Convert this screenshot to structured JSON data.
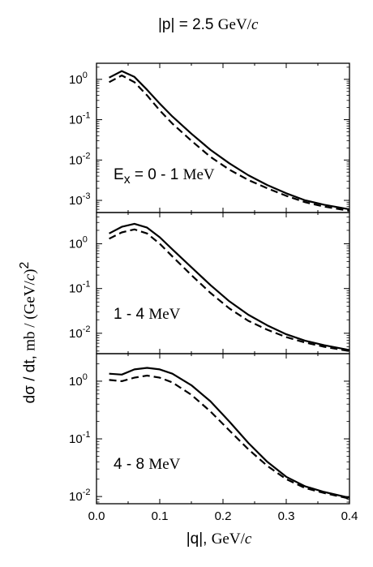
{
  "figure": {
    "title_prefix": "|p| = 2.5",
    "title_unit": "GeV/",
    "title_c": "c",
    "xlabel_q": "|q|,",
    "xlabel_unit": "GeV/",
    "xlabel_c": "c",
    "ylabel_main": "dσ / dt,",
    "ylabel_unit": "mb / (GeV/",
    "ylabel_c": "c",
    "ylabel_close": ")",
    "ylabel_exp": "2"
  },
  "panels": [
    {
      "label_main": "E",
      "label_sub": "x",
      "label_rest": " = 0 - 1",
      "label_unit": "MeV"
    },
    {
      "label_main": "1 - 4",
      "label_unit": "MeV"
    },
    {
      "label_main": "4 - 8",
      "label_unit": "MeV"
    }
  ],
  "chart_data": [
    {
      "type": "line",
      "panel": "E_x = 0 - 1 MeV",
      "xlim": [
        0.0,
        0.4
      ],
      "ylim": [
        0.0005,
        2.5
      ],
      "yscale": "log",
      "x_ticks": [
        0.0,
        0.1,
        0.2,
        0.3,
        0.4
      ],
      "y_ticks": [
        1,
        0.1,
        0.01,
        0.001
      ],
      "y_tick_labels": [
        "10^0",
        "10^-1",
        "10^-2",
        "10^-3"
      ],
      "series": [
        {
          "style": "solid",
          "x": [
            0.02,
            0.04,
            0.06,
            0.08,
            0.1,
            0.12,
            0.15,
            0.18,
            0.21,
            0.24,
            0.27,
            0.3,
            0.33,
            0.36,
            0.4
          ],
          "y": [
            1.1,
            1.6,
            1.15,
            0.55,
            0.25,
            0.12,
            0.045,
            0.018,
            0.0083,
            0.0042,
            0.0024,
            0.0015,
            0.001,
            0.00078,
            0.0006
          ]
        },
        {
          "style": "dashed",
          "x": [
            0.02,
            0.04,
            0.06,
            0.08,
            0.1,
            0.12,
            0.15,
            0.18,
            0.21,
            0.24,
            0.27,
            0.3,
            0.33,
            0.36,
            0.4
          ],
          "y": [
            0.85,
            1.25,
            0.85,
            0.4,
            0.17,
            0.08,
            0.03,
            0.012,
            0.0058,
            0.0032,
            0.002,
            0.0013,
            0.0009,
            0.0007,
            0.00055
          ]
        }
      ]
    },
    {
      "type": "line",
      "panel": "1 - 4 MeV",
      "xlim": [
        0.0,
        0.4
      ],
      "ylim": [
        0.0035,
        5.0
      ],
      "yscale": "log",
      "x_ticks": [
        0.0,
        0.1,
        0.2,
        0.3,
        0.4
      ],
      "y_ticks": [
        1,
        0.1,
        0.01
      ],
      "y_tick_labels": [
        "10^0",
        "10^-1",
        "10^-2"
      ],
      "series": [
        {
          "style": "solid",
          "x": [
            0.02,
            0.04,
            0.06,
            0.08,
            0.1,
            0.12,
            0.15,
            0.18,
            0.21,
            0.24,
            0.27,
            0.3,
            0.33,
            0.36,
            0.4
          ],
          "y": [
            1.7,
            2.4,
            2.8,
            2.3,
            1.4,
            0.75,
            0.3,
            0.12,
            0.052,
            0.026,
            0.015,
            0.0095,
            0.0068,
            0.0054,
            0.0042
          ]
        },
        {
          "style": "dashed",
          "x": [
            0.02,
            0.04,
            0.06,
            0.08,
            0.1,
            0.12,
            0.15,
            0.18,
            0.21,
            0.24,
            0.27,
            0.3,
            0.33,
            0.36,
            0.4
          ],
          "y": [
            1.3,
            1.8,
            2.1,
            1.7,
            1.0,
            0.52,
            0.2,
            0.08,
            0.036,
            0.019,
            0.012,
            0.0082,
            0.0062,
            0.005,
            0.004
          ]
        }
      ]
    },
    {
      "type": "line",
      "panel": "4 - 8 MeV",
      "xlim": [
        0.0,
        0.4
      ],
      "ylim": [
        0.0075,
        3.0
      ],
      "yscale": "log",
      "x_ticks": [
        0.0,
        0.1,
        0.2,
        0.3,
        0.4
      ],
      "x_tick_labels": [
        "0.0",
        "0.1",
        "0.2",
        "0.3",
        "0.4"
      ],
      "y_ticks": [
        1,
        0.1,
        0.01
      ],
      "y_tick_labels": [
        "10^0",
        "10^-1",
        "10^-2"
      ],
      "series": [
        {
          "style": "solid",
          "x": [
            0.02,
            0.04,
            0.06,
            0.08,
            0.1,
            0.12,
            0.15,
            0.18,
            0.21,
            0.24,
            0.27,
            0.3,
            0.33,
            0.36,
            0.4
          ],
          "y": [
            1.35,
            1.3,
            1.6,
            1.7,
            1.6,
            1.35,
            0.85,
            0.45,
            0.2,
            0.085,
            0.04,
            0.022,
            0.015,
            0.012,
            0.0095
          ]
        },
        {
          "style": "dashed",
          "x": [
            0.02,
            0.04,
            0.06,
            0.08,
            0.1,
            0.12,
            0.15,
            0.18,
            0.21,
            0.24,
            0.27,
            0.3,
            0.33,
            0.36,
            0.4
          ],
          "y": [
            1.05,
            1.0,
            1.15,
            1.25,
            1.15,
            0.95,
            0.58,
            0.3,
            0.14,
            0.066,
            0.034,
            0.02,
            0.014,
            0.0115,
            0.0092
          ]
        }
      ]
    }
  ]
}
